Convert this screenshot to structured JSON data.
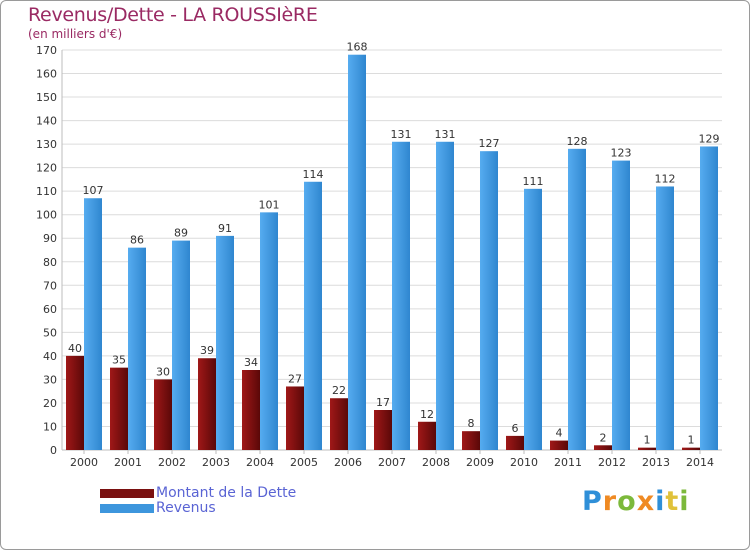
{
  "title": "Revenus/Dette - LA ROUSSIèRE",
  "subtitle": "(en milliers d'€)",
  "logo": {
    "text": "Proxiti",
    "colors": [
      "#2f8fd8",
      "#ef8a23",
      "#7cb93b",
      "#e0c23a"
    ]
  },
  "colors": {
    "dette": "#7a1010",
    "revenus": "#3d96dd",
    "grid": "#dcdcdc",
    "axis_text": "#333333",
    "title": "#9a2a63",
    "legend_text": "#5a64d4"
  },
  "chart_data": {
    "type": "bar",
    "title": "Revenus/Dette - LA ROUSSIèRE",
    "subtitle": "(en milliers d'€)",
    "xlabel": "",
    "ylabel": "",
    "ylim": [
      0,
      170
    ],
    "yticks": [
      0,
      10,
      20,
      30,
      40,
      50,
      60,
      70,
      80,
      90,
      100,
      110,
      120,
      130,
      140,
      150,
      160,
      170
    ],
    "grid": true,
    "legend_position": "bottom-left",
    "categories": [
      "2000",
      "2001",
      "2002",
      "2003",
      "2004",
      "2005",
      "2006",
      "2007",
      "2008",
      "2009",
      "2010",
      "2011",
      "2012",
      "2013",
      "2014"
    ],
    "series": [
      {
        "name": "Montant de la Dette",
        "color": "#7a1010",
        "values": [
          40,
          35,
          30,
          39,
          34,
          27,
          22,
          17,
          12,
          8,
          6,
          4,
          2,
          1,
          1
        ]
      },
      {
        "name": "Revenus",
        "color": "#3d96dd",
        "values": [
          107,
          86,
          89,
          91,
          101,
          114,
          168,
          131,
          131,
          127,
          111,
          128,
          123,
          112,
          129
        ]
      }
    ]
  }
}
